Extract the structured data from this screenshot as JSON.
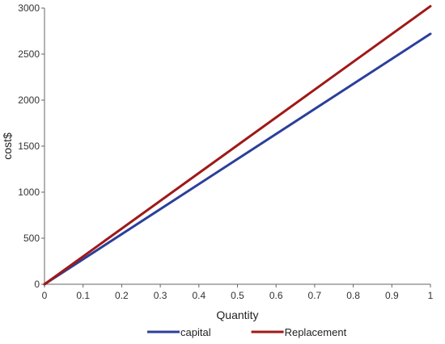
{
  "chart_data": {
    "type": "line",
    "title": "",
    "xlabel": "Quantity",
    "ylabel": "cost$",
    "xlim": [
      0,
      1
    ],
    "ylim": [
      0,
      3000
    ],
    "xticks": [
      "0",
      "0.1",
      "0.2",
      "0.3",
      "0.4",
      "0.5",
      "0.6",
      "0.7",
      "0.8",
      "0.9",
      "1"
    ],
    "yticks": [
      "0",
      "500",
      "1000",
      "1500",
      "2000",
      "2500",
      "3000"
    ],
    "grid": false,
    "legend_position": "bottom",
    "series": [
      {
        "name": "capital",
        "color": "#2b3f9a",
        "x": [
          0,
          1
        ],
        "y": [
          0,
          2720
        ]
      },
      {
        "name": "Replacement",
        "color": "#a01818",
        "x": [
          0,
          1
        ],
        "y": [
          0,
          3020
        ]
      }
    ]
  }
}
